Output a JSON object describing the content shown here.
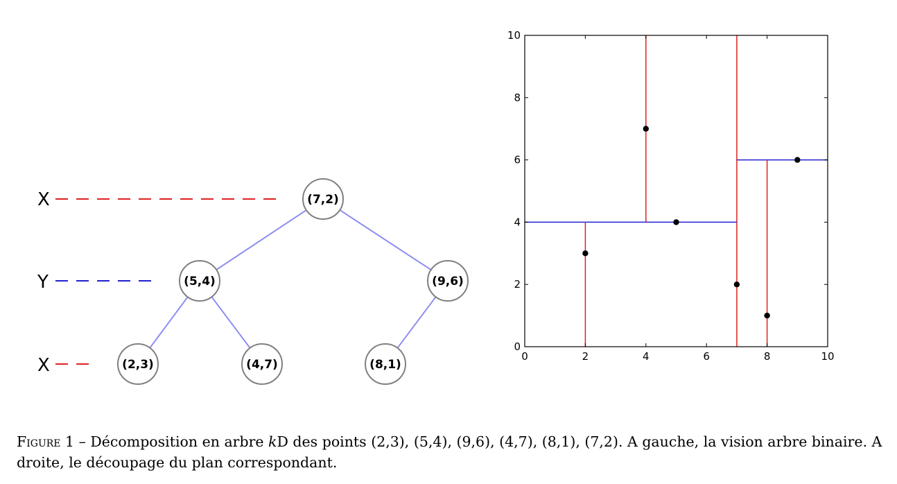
{
  "tree": {
    "levels": [
      {
        "label": "X",
        "color": "#e02020"
      },
      {
        "label": "Y",
        "color": "#2020d0"
      },
      {
        "label": "X",
        "color": "#e02020"
      }
    ],
    "nodes": [
      {
        "id": "n72",
        "label": "(7,2)"
      },
      {
        "id": "n54",
        "label": "(5,4)"
      },
      {
        "id": "n96",
        "label": "(9,6)"
      },
      {
        "id": "n23",
        "label": "(2,3)"
      },
      {
        "id": "n47",
        "label": "(4,7)"
      },
      {
        "id": "n81",
        "label": "(8,1)"
      }
    ],
    "edges": [
      [
        "n72",
        "n54"
      ],
      [
        "n72",
        "n96"
      ],
      [
        "n54",
        "n23"
      ],
      [
        "n54",
        "n47"
      ],
      [
        "n96",
        "n81"
      ]
    ],
    "edge_color": "#8c8cf0",
    "node_stroke": "#808080"
  },
  "chart_data": {
    "type": "scatter",
    "xlim": [
      0,
      10
    ],
    "ylim": [
      0,
      10
    ],
    "xticks": [
      "0",
      "2",
      "4",
      "6",
      "8",
      "10"
    ],
    "yticks": [
      "0",
      "2",
      "4",
      "6",
      "8",
      "10"
    ],
    "points": [
      {
        "x": 2,
        "y": 3
      },
      {
        "x": 5,
        "y": 4
      },
      {
        "x": 9,
        "y": 6
      },
      {
        "x": 4,
        "y": 7
      },
      {
        "x": 8,
        "y": 1
      },
      {
        "x": 7,
        "y": 2
      }
    ],
    "splits": [
      {
        "orient": "vertical",
        "at": 7,
        "from": 0,
        "to": 10,
        "color": "#e02020"
      },
      {
        "orient": "horizontal",
        "at": 4,
        "from": 0,
        "to": 7,
        "color": "#2020d0"
      },
      {
        "orient": "horizontal",
        "at": 6,
        "from": 7,
        "to": 10,
        "color": "#2020d0"
      },
      {
        "orient": "vertical",
        "at": 2,
        "from": 0,
        "to": 4,
        "color": "#e02020"
      },
      {
        "orient": "vertical",
        "at": 4,
        "from": 4,
        "to": 10,
        "color": "#e02020"
      },
      {
        "orient": "vertical",
        "at": 8,
        "from": 0,
        "to": 6,
        "color": "#e02020"
      }
    ]
  },
  "caption": {
    "figure_label": "Figure 1",
    "dash": " – ",
    "text_before_k": "Décomposition en arbre ",
    "k": "k",
    "text_after_k": "D des points (2,3), (5,4), (9,6), (4,7), (8,1), (7,2). A gauche, la vision arbre binaire. A droite, le découpage du plan correspondant."
  }
}
